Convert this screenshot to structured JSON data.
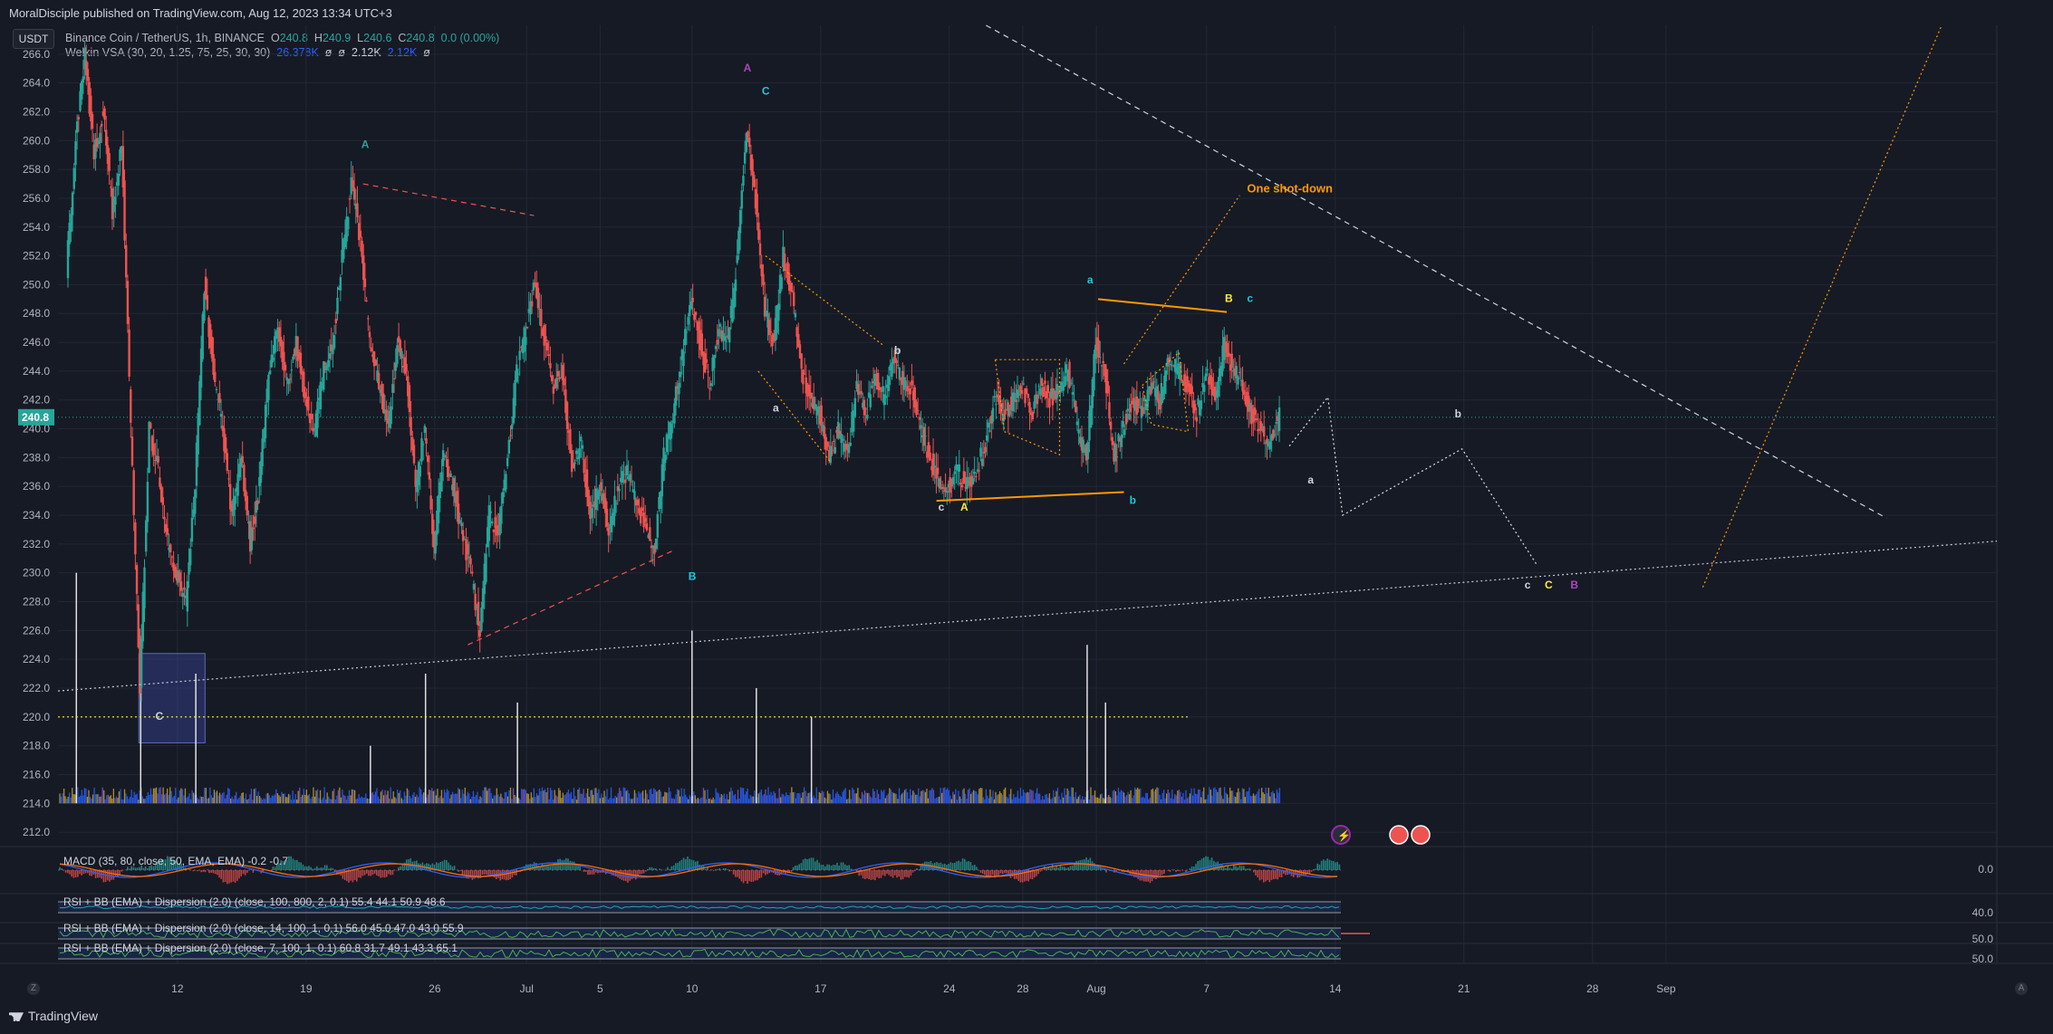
{
  "header": {
    "published": "MoralDisciple published on TradingView.com, Aug 12, 2023 13:34 UTC+3",
    "currency_button": "USDT"
  },
  "legend": {
    "symbol": "Binance Coin / TetherUS, 1h, BINANCE",
    "ohlc": {
      "O": "240.8",
      "H": "240.9",
      "L": "240.6",
      "C": "240.8",
      "change": "0.0 (0.00%)"
    },
    "vsa_title": "Welkin VSA (30, 20, 1.25, 75, 25, 30, 30)",
    "vsa_values": [
      "26.378K",
      "ø",
      "ø",
      "2.12K",
      "2.12K",
      "ø"
    ]
  },
  "colors": {
    "background": "#161a25",
    "grid": "#232734",
    "up": "#26a69a",
    "down": "#ef5350",
    "orange": "#ff9800",
    "white": "#d1d4dc",
    "yellow": "#ffeb3b",
    "teal": "#26c6da",
    "purple": "#ab47bc",
    "pink": "#f06292"
  },
  "chart_data": {
    "type": "line",
    "title": "Binance Coin / TetherUS, 1h, BINANCE",
    "price_scale": {
      "ticks": [
        "266.0",
        "264.0",
        "262.0",
        "260.0",
        "258.0",
        "256.0",
        "254.0",
        "252.0",
        "250.0",
        "248.0",
        "246.0",
        "244.0",
        "242.0",
        "240.0",
        "238.0",
        "236.0",
        "234.0",
        "232.0",
        "230.0",
        "228.0",
        "226.0",
        "224.0",
        "222.0",
        "220.0",
        "218.0",
        "216.0",
        "214.0",
        "212.0"
      ],
      "range": [
        211,
        268
      ],
      "last_price": "240.8"
    },
    "time_axis": {
      "labels": [
        "12",
        "19",
        "26",
        "Jul",
        "5",
        "10",
        "17",
        "24",
        "28",
        "Aug",
        "7",
        "14",
        "21",
        "28",
        "Sep"
      ],
      "label_days": [
        12,
        19,
        26,
        31,
        35,
        40,
        47,
        54,
        58,
        62,
        68,
        75,
        82,
        89,
        93
      ],
      "range_days": [
        5.5,
        111
      ]
    },
    "series": [
      {
        "values": [
          [
            6,
            251
          ],
          [
            6.5,
            260
          ],
          [
            7,
            266
          ],
          [
            7.5,
            259
          ],
          [
            8,
            262
          ],
          [
            8.5,
            255
          ],
          [
            9,
            260
          ],
          [
            9.5,
            240
          ],
          [
            10,
            222
          ],
          [
            10.5,
            240
          ],
          [
            11,
            237
          ],
          [
            11.5,
            232
          ],
          [
            12,
            230
          ],
          [
            12.5,
            228
          ],
          [
            13,
            236
          ],
          [
            13.5,
            250
          ],
          [
            14,
            244
          ],
          [
            14.5,
            240
          ],
          [
            15,
            234
          ],
          [
            15.5,
            238
          ],
          [
            16,
            232
          ],
          [
            16.5,
            236
          ],
          [
            17,
            244
          ],
          [
            17.5,
            247
          ],
          [
            18,
            243
          ],
          [
            18.5,
            246
          ],
          [
            19,
            242
          ],
          [
            19.5,
            240
          ],
          [
            20,
            244
          ],
          [
            20.5,
            246
          ],
          [
            21,
            252
          ],
          [
            21.5,
            257
          ],
          [
            22,
            253
          ],
          [
            22.5,
            246
          ],
          [
            23,
            243
          ],
          [
            23.5,
            240
          ],
          [
            24,
            246
          ],
          [
            24.5,
            244
          ],
          [
            25,
            236
          ],
          [
            25.5,
            240
          ],
          [
            26,
            232
          ],
          [
            26.5,
            238
          ],
          [
            27,
            236
          ],
          [
            27.5,
            233
          ],
          [
            28,
            230
          ],
          [
            28.5,
            226
          ],
          [
            29,
            234
          ],
          [
            29.5,
            233
          ],
          [
            30,
            238
          ],
          [
            30.5,
            244
          ],
          [
            31,
            247
          ],
          [
            31.5,
            250
          ],
          [
            32,
            246
          ],
          [
            32.5,
            243
          ],
          [
            33,
            244
          ],
          [
            33.5,
            237
          ],
          [
            34,
            239
          ],
          [
            34.5,
            234
          ],
          [
            35,
            236
          ],
          [
            35.5,
            233
          ],
          [
            36,
            236
          ],
          [
            36.5,
            237
          ],
          [
            37,
            235
          ],
          [
            37.5,
            233
          ],
          [
            38,
            232
          ],
          [
            38.5,
            238
          ],
          [
            39,
            241
          ],
          [
            39.5,
            245
          ],
          [
            40,
            249
          ],
          [
            40.5,
            246
          ],
          [
            41,
            243
          ],
          [
            41.5,
            247
          ],
          [
            42,
            246
          ],
          [
            42.5,
            252
          ],
          [
            43,
            261
          ],
          [
            43.5,
            256
          ],
          [
            44,
            248
          ],
          [
            44.5,
            246
          ],
          [
            45,
            252
          ],
          [
            45.5,
            249
          ],
          [
            46,
            244
          ],
          [
            46.5,
            242
          ],
          [
            47,
            241
          ],
          [
            47.5,
            238
          ],
          [
            48,
            240
          ],
          [
            48.5,
            238
          ],
          [
            49,
            243
          ],
          [
            49.5,
            241
          ],
          [
            50,
            244
          ],
          [
            50.5,
            242
          ],
          [
            51,
            245
          ],
          [
            51.5,
            243
          ],
          [
            52,
            243
          ],
          [
            52.5,
            240
          ],
          [
            53,
            238
          ],
          [
            53.5,
            236
          ],
          [
            54,
            236
          ],
          [
            54.5,
            237
          ],
          [
            55,
            236
          ],
          [
            55.5,
            237
          ],
          [
            56,
            239
          ],
          [
            56.5,
            242
          ],
          [
            57,
            241
          ],
          [
            57.5,
            242
          ],
          [
            58,
            243
          ],
          [
            58.5,
            241
          ],
          [
            59,
            243
          ],
          [
            59.5,
            242
          ],
          [
            60,
            243
          ],
          [
            60.5,
            244
          ],
          [
            61,
            240
          ],
          [
            61.5,
            238
          ],
          [
            62,
            246
          ],
          [
            62.5,
            244
          ],
          [
            63,
            238
          ],
          [
            63.5,
            240
          ],
          [
            64,
            242
          ],
          [
            64.5,
            241
          ],
          [
            65,
            243
          ],
          [
            65.5,
            242
          ],
          [
            66,
            245
          ],
          [
            66.5,
            244
          ],
          [
            67,
            243
          ],
          [
            67.5,
            241
          ],
          [
            68,
            244
          ],
          [
            68.5,
            242
          ],
          [
            69,
            246
          ],
          [
            69.5,
            244
          ],
          [
            70,
            243
          ],
          [
            70.5,
            241
          ],
          [
            71,
            240
          ],
          [
            71.5,
            239
          ],
          [
            72,
            240.8
          ]
        ]
      }
    ],
    "volume_peaks": [
      [
        6.5,
        230
      ],
      [
        10,
        225
      ],
      [
        13,
        223
      ],
      [
        22.5,
        218
      ],
      [
        25.5,
        223
      ],
      [
        30.5,
        221
      ],
      [
        40,
        226
      ],
      [
        43.5,
        222
      ],
      [
        46.5,
        220
      ],
      [
        61.5,
        225
      ],
      [
        62.5,
        221
      ]
    ],
    "macd": {
      "title": "MACD (35, 80, close, 50, EMA, EMA)",
      "values": [
        "-0.2",
        "-0.7"
      ],
      "axis_label": "0.0"
    },
    "rsi_panels": [
      {
        "title": "RSI + BB (EMA) + Dispersion (2.0) (close, 100, 800, 2, 0.1)",
        "values": [
          "55.4",
          "44.1",
          "50.9",
          "48.6"
        ],
        "axis_label": "40.0"
      },
      {
        "title": "RSI + BB (EMA) + Dispersion (2.0) (close, 14, 100, 1, 0.1)",
        "values": [
          "56.0",
          "45.0",
          "47.0",
          "43.0",
          "55.9"
        ],
        "axis_label": "50.0"
      },
      {
        "title": "RSI + BB (EMA) + Dispersion (2.0) (close, 7, 100, 1, 0.1)",
        "values": [
          "60.8",
          "31.7",
          "49.1",
          "43.3",
          "65.1"
        ],
        "axis_label": "50.0"
      }
    ],
    "annotations": [
      {
        "text": "A",
        "day": 22,
        "price": 259.5,
        "color": "#26a69a"
      },
      {
        "text": "A",
        "day": 42.8,
        "price": 264.8,
        "color": "#ab47bc"
      },
      {
        "text": "C",
        "day": 43.8,
        "price": 263.2,
        "color": "#26c6da"
      },
      {
        "text": "B",
        "day": 39.8,
        "price": 229.5,
        "color": "#26c6da"
      },
      {
        "text": "C",
        "day": 10.8,
        "price": 219.8,
        "color": "#d1d4dc"
      },
      {
        "text": "a",
        "day": 44.4,
        "price": 241.2,
        "color": "#d1d4dc"
      },
      {
        "text": "b",
        "day": 51,
        "price": 245.2,
        "color": "#d1d4dc"
      },
      {
        "text": "c",
        "day": 53.4,
        "price": 234.3,
        "color": "#d1d4dc"
      },
      {
        "text": "A",
        "day": 54.6,
        "price": 234.3,
        "color": "#ffeb3b"
      },
      {
        "text": "a",
        "day": 61.5,
        "price": 250.1,
        "color": "#26c6da"
      },
      {
        "text": "b",
        "day": 63.8,
        "price": 234.8,
        "color": "#26c6da"
      },
      {
        "text": "B",
        "day": 69,
        "price": 248.8,
        "color": "#ffeb3b"
      },
      {
        "text": "c",
        "day": 70.2,
        "price": 248.8,
        "color": "#26c6da"
      },
      {
        "text": "a",
        "day": 73.5,
        "price": 236.2,
        "color": "#d1d4dc"
      },
      {
        "text": "b",
        "day": 81.5,
        "price": 240.8,
        "color": "#d1d4dc"
      },
      {
        "text": "c",
        "day": 85.3,
        "price": 228.9,
        "color": "#d1d4dc"
      },
      {
        "text": "C",
        "day": 86.4,
        "price": 228.9,
        "color": "#ffeb3b"
      },
      {
        "text": "B",
        "day": 87.8,
        "price": 228.9,
        "color": "#ab47bc"
      },
      {
        "text": "One shot-down",
        "day": 70.2,
        "price": 256.4,
        "color": "#ff9800"
      }
    ],
    "drawings": [
      {
        "kind": "dotted",
        "color": "#c9ccd4",
        "points": [
          [
            5.5,
            221.8
          ],
          [
            111,
            232.2
          ]
        ]
      },
      {
        "kind": "dashed",
        "color": "#d1d4dc",
        "points": [
          [
            56,
            268
          ],
          [
            105,
            233.8
          ]
        ]
      },
      {
        "kind": "dashed",
        "color": "#ef5350",
        "points": [
          [
            22.1,
            257
          ],
          [
            31.4,
            254.8
          ]
        ]
      },
      {
        "kind": "dashed",
        "color": "#ef5350",
        "points": [
          [
            27.8,
            225
          ],
          [
            38.9,
            231.5
          ]
        ]
      },
      {
        "kind": "solid",
        "color": "#ff9800",
        "points": [
          [
            53.3,
            235
          ],
          [
            63.5,
            235.6
          ]
        ]
      },
      {
        "kind": "solid",
        "color": "#ff9800",
        "points": [
          [
            62.1,
            249
          ],
          [
            69.1,
            248.1
          ]
        ]
      },
      {
        "kind": "dotted",
        "color": "#ff9800",
        "points": [
          [
            44,
            252
          ],
          [
            50.4,
            245.8
          ]
        ]
      },
      {
        "kind": "dotted",
        "color": "#ff9800",
        "points": [
          [
            43.6,
            244
          ],
          [
            47.6,
            237.6
          ]
        ]
      },
      {
        "kind": "dotted",
        "color": "#ff9800",
        "points": [
          [
            95,
            229
          ],
          [
            108,
            268
          ]
        ]
      },
      {
        "kind": "dotted",
        "color": "#ff9800",
        "points": [
          [
            63.5,
            244.5
          ],
          [
            69.8,
            256.2
          ]
        ]
      },
      {
        "kind": "dotted",
        "color": "#e0e0e0",
        "points": [
          [
            72.5,
            238.8
          ],
          [
            74.6,
            242.2
          ],
          [
            75.4,
            234
          ],
          [
            81.9,
            238.6
          ],
          [
            86,
            230.5
          ]
        ]
      },
      {
        "kind": "dotted",
        "color": "#ff9800",
        "points": [
          [
            56.5,
            244.8
          ],
          [
            60,
            244.8
          ],
          [
            60,
            238.2
          ],
          [
            57,
            239.8
          ],
          [
            56.5,
            244.8
          ]
        ]
      },
      {
        "kind": "dotted",
        "color": "#ff9800",
        "points": [
          [
            64.5,
            243
          ],
          [
            66.5,
            245.3
          ],
          [
            67,
            239.8
          ],
          [
            65,
            240.3
          ],
          [
            64.5,
            243
          ]
        ]
      },
      {
        "kind": "dotted",
        "color": "#ffeb3b",
        "points": [
          [
            5.5,
            220
          ],
          [
            67,
            220
          ]
        ]
      }
    ],
    "highlight_box": {
      "x1": 9.9,
      "x2": 13.5,
      "y1": 224.4,
      "y2": 218.2,
      "color": "#3f51b5"
    }
  }
}
